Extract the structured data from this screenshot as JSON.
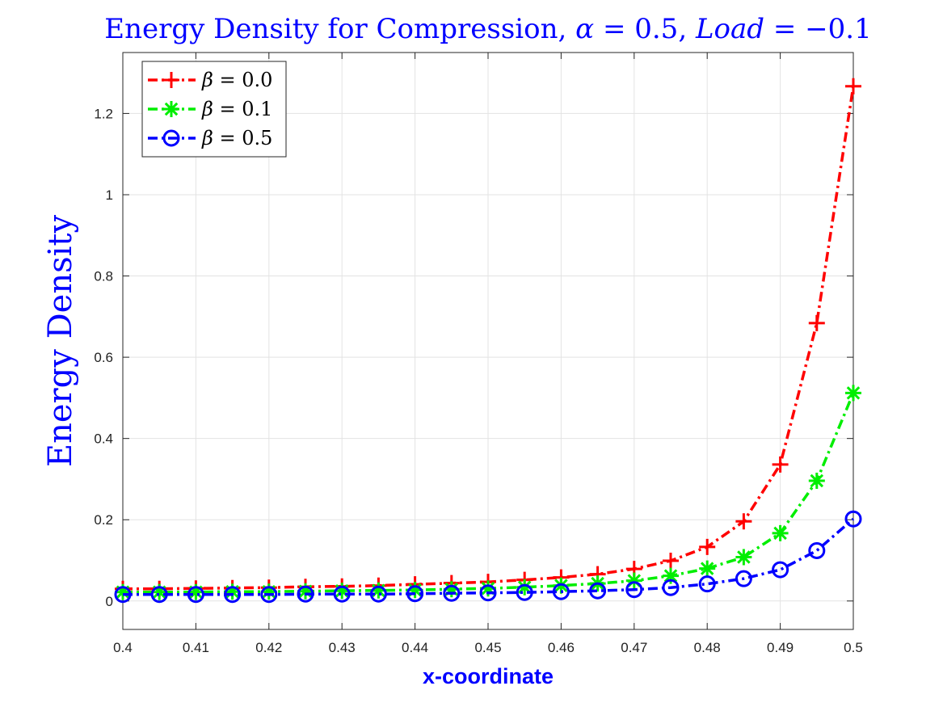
{
  "chart_data": {
    "type": "line",
    "title": "Energy Density for Compression, α = 0.5, Load = −0.1",
    "title_parts": {
      "prefix": "Energy Density for Compression, ",
      "alpha_symbol": "α",
      "alpha_value": " = 0.5, ",
      "load_symbol": "Load",
      "load_value": " = −0.1"
    },
    "xlabel": "x-coordinate",
    "ylabel": "Energy Density",
    "xlim": [
      0.4,
      0.5
    ],
    "ylim": [
      -0.07,
      1.35
    ],
    "grid": true,
    "legend_position": "top-left",
    "x_ticks": [
      0.4,
      0.41,
      0.42,
      0.43,
      0.44,
      0.45,
      0.46,
      0.47,
      0.48,
      0.49,
      0.5
    ],
    "x_tick_labels": [
      "0.4",
      "0.41",
      "0.42",
      "0.43",
      "0.44",
      "0.45",
      "0.46",
      "0.47",
      "0.48",
      "0.49",
      "0.5"
    ],
    "y_ticks": [
      0,
      0.2,
      0.4,
      0.6,
      0.8,
      1,
      1.2
    ],
    "y_tick_labels": [
      "0",
      "0.2",
      "0.4",
      "0.6",
      "0.8",
      "1",
      "1.2"
    ],
    "x": [
      0.4,
      0.405,
      0.41,
      0.415,
      0.42,
      0.425,
      0.43,
      0.435,
      0.44,
      0.445,
      0.45,
      0.455,
      0.46,
      0.465,
      0.47,
      0.475,
      0.48,
      0.485,
      0.49,
      0.495,
      0.5
    ],
    "series": [
      {
        "name": "β = 0.0",
        "symbol": "β",
        "value_text": " = 0.0",
        "color": "#ff0000",
        "marker": "plus",
        "values": [
          0.03,
          0.03,
          0.031,
          0.032,
          0.033,
          0.035,
          0.036,
          0.038,
          0.041,
          0.044,
          0.047,
          0.052,
          0.058,
          0.066,
          0.079,
          0.099,
          0.133,
          0.196,
          0.336,
          0.684,
          1.267
        ]
      },
      {
        "name": "β = 0.1",
        "symbol": "β",
        "value_text": " = 0.1",
        "color": "#00ee00",
        "marker": "asterisk",
        "values": [
          0.022,
          0.022,
          0.022,
          0.023,
          0.023,
          0.024,
          0.025,
          0.026,
          0.027,
          0.029,
          0.031,
          0.034,
          0.038,
          0.043,
          0.05,
          0.062,
          0.08,
          0.108,
          0.167,
          0.296,
          0.512
        ]
      },
      {
        "name": "β = 0.5",
        "symbol": "β",
        "value_text": " = 0.5",
        "color": "#0000ff",
        "marker": "circle",
        "values": [
          0.016,
          0.016,
          0.016,
          0.016,
          0.016,
          0.017,
          0.017,
          0.017,
          0.018,
          0.019,
          0.02,
          0.021,
          0.023,
          0.025,
          0.028,
          0.033,
          0.042,
          0.055,
          0.077,
          0.124,
          0.202
        ]
      }
    ]
  }
}
